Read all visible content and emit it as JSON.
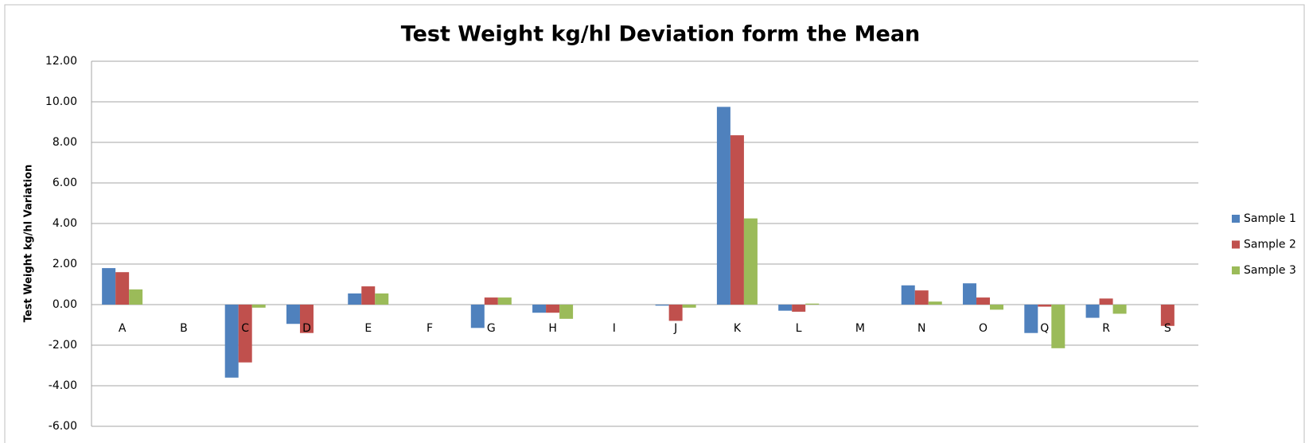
{
  "chart_data": {
    "type": "bar",
    "title": "Test Weight kg/hl Deviation form the Mean",
    "y_label": "Test Weight kg/hl Variation",
    "categories": [
      "A",
      "B",
      "C",
      "D",
      "E",
      "F",
      "G",
      "H",
      "I",
      "J",
      "K",
      "L",
      "M",
      "N",
      "O",
      "Q",
      "R",
      "S"
    ],
    "series": [
      {
        "name": "Sample 1",
        "color": "#4f81bd",
        "values": [
          1.8,
          null,
          -3.6,
          -0.95,
          0.55,
          null,
          -1.15,
          -0.4,
          null,
          -0.05,
          9.75,
          -0.3,
          null,
          0.95,
          1.05,
          -1.4,
          -0.65,
          null
        ]
      },
      {
        "name": "Sample 2",
        "color": "#c0504d",
        "values": [
          1.6,
          null,
          -2.85,
          -1.4,
          0.9,
          null,
          0.35,
          -0.4,
          null,
          -0.8,
          8.35,
          -0.35,
          null,
          0.7,
          0.35,
          -0.1,
          0.3,
          -1.05
        ]
      },
      {
        "name": "Sample 3",
        "color": "#9bbb59",
        "values": [
          0.75,
          null,
          -0.15,
          0,
          0.55,
          null,
          0.35,
          -0.7,
          null,
          -0.15,
          4.25,
          0.05,
          null,
          0.15,
          -0.25,
          -2.15,
          -0.45,
          null
        ]
      }
    ],
    "ylim": [
      -6,
      12
    ],
    "yticks": [
      {
        "value": -6,
        "label": "-6.00"
      },
      {
        "value": -4,
        "label": "-4.00"
      },
      {
        "value": -2,
        "label": "-2.00"
      },
      {
        "value": 0,
        "label": "0.00"
      },
      {
        "value": 2,
        "label": "2.00"
      },
      {
        "value": 4,
        "label": "4.00"
      },
      {
        "value": 6,
        "label": "6.00"
      },
      {
        "value": 8,
        "label": "8.00"
      },
      {
        "value": 10,
        "label": "10.00"
      },
      {
        "value": 12,
        "label": "12.00"
      }
    ],
    "grid": true,
    "legend": "right"
  }
}
